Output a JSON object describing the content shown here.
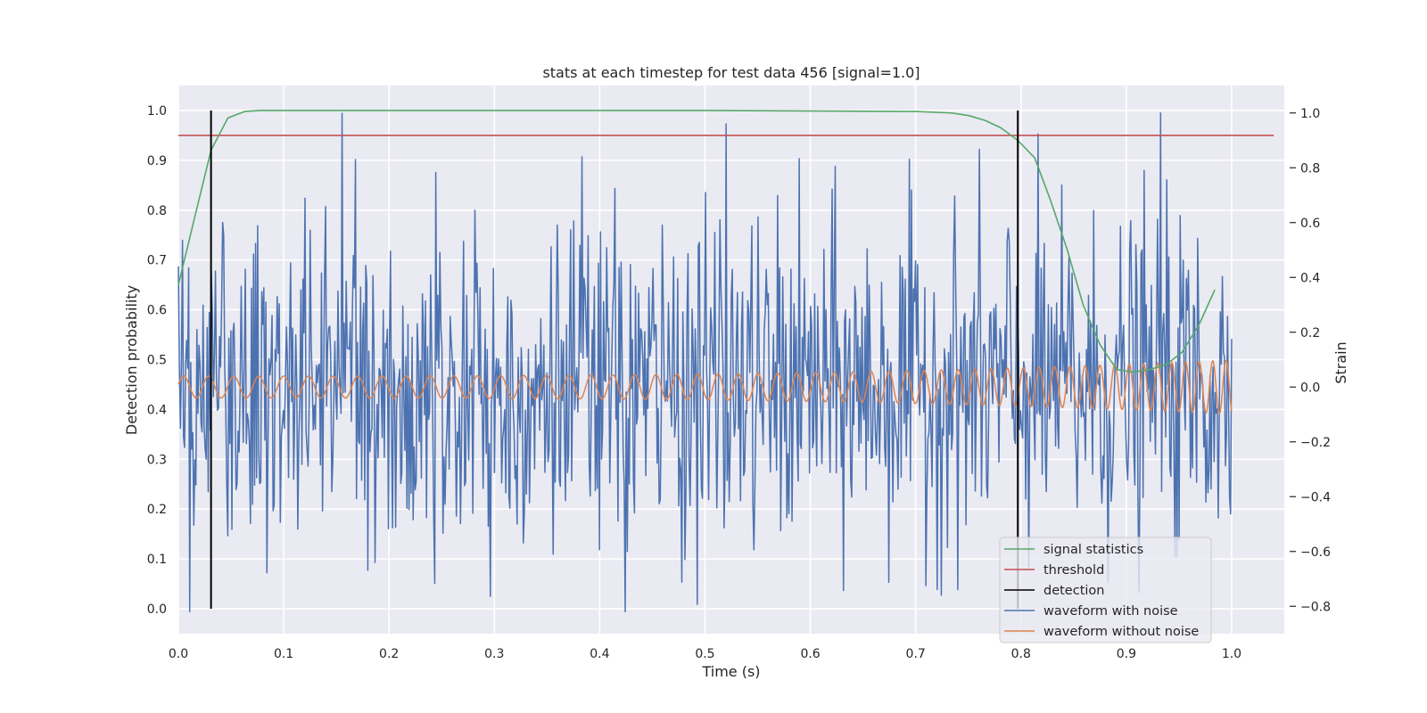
{
  "chart_data": {
    "type": "line",
    "title": "stats at each timestep for test data 456 [signal=1.0]",
    "xlabel": "Time (s)",
    "ylabel_left": "Detection probability",
    "ylabel_right": "Strain",
    "xlim": [
      0.0,
      1.05
    ],
    "ylim_left": [
      -0.05,
      1.05
    ],
    "ylim_right": [
      -0.9,
      1.1
    ],
    "grid": true,
    "legend_position": "bottom-right",
    "x_ticks": [
      "0.0",
      "0.1",
      "0.2",
      "0.3",
      "0.4",
      "0.5",
      "0.6",
      "0.7",
      "0.8",
      "0.9",
      "1.0"
    ],
    "y_ticks_left": [
      "0.0",
      "0.1",
      "0.2",
      "0.3",
      "0.4",
      "0.5",
      "0.6",
      "0.7",
      "0.8",
      "0.9",
      "1.0"
    ],
    "y_ticks_right": [
      "−0.8",
      "−0.6",
      "−0.4",
      "−0.2",
      "0.0",
      "0.2",
      "0.4",
      "0.6",
      "0.8",
      "1.0"
    ],
    "colors": {
      "signal": "#55a868",
      "threshold": "#c44e52",
      "detection": "#000000",
      "noisy": "#4c72b0",
      "clean": "#dd8452",
      "background": "#eaeaf2",
      "grid": "#ffffff"
    },
    "series": [
      {
        "name": "signal statistics",
        "axis": "left",
        "x": [
          0.0,
          0.016,
          0.031,
          0.047,
          0.063,
          0.078,
          0.1,
          0.3,
          0.5,
          0.7,
          0.734,
          0.75,
          0.766,
          0.781,
          0.797,
          0.813,
          0.828,
          0.844,
          0.859,
          0.875,
          0.891,
          0.906,
          0.922,
          0.938,
          0.953,
          0.969,
          0.984
        ],
        "values": [
          0.65,
          0.79,
          0.92,
          0.985,
          0.998,
          1.0,
          1.0,
          1.0,
          1.0,
          0.998,
          0.995,
          0.99,
          0.98,
          0.965,
          0.94,
          0.905,
          0.82,
          0.72,
          0.61,
          0.53,
          0.48,
          0.475,
          0.48,
          0.49,
          0.515,
          0.57,
          0.64
        ]
      },
      {
        "name": "threshold",
        "axis": "left",
        "value": 0.95,
        "x_range": [
          0.0,
          1.04
        ]
      },
      {
        "name": "detection",
        "axis": "left",
        "x": [
          0.031,
          0.797
        ],
        "y_range": [
          0.0,
          1.0
        ]
      },
      {
        "name": "waveform with noise",
        "axis": "right",
        "n_points": 1024,
        "amplitude_range": [
          -0.9,
          1.0
        ],
        "notable_peaks": [
          {
            "x": 0.168,
            "value": 0.83
          },
          {
            "x": 0.383,
            "value": 0.84
          },
          {
            "x": 0.52,
            "value": 0.96
          },
          {
            "x": 0.933,
            "value": 1.0
          },
          {
            "x": 0.424,
            "value": -0.82
          },
          {
            "x": 0.011,
            "value": -0.82
          }
        ]
      },
      {
        "name": "waveform without noise",
        "axis": "right",
        "n_points": 1024,
        "model": "chirp",
        "amplitude_start": 0.04,
        "amplitude_end": 0.1,
        "frequency_start_hz": 42,
        "frequency_end_hz": 80
      }
    ]
  }
}
